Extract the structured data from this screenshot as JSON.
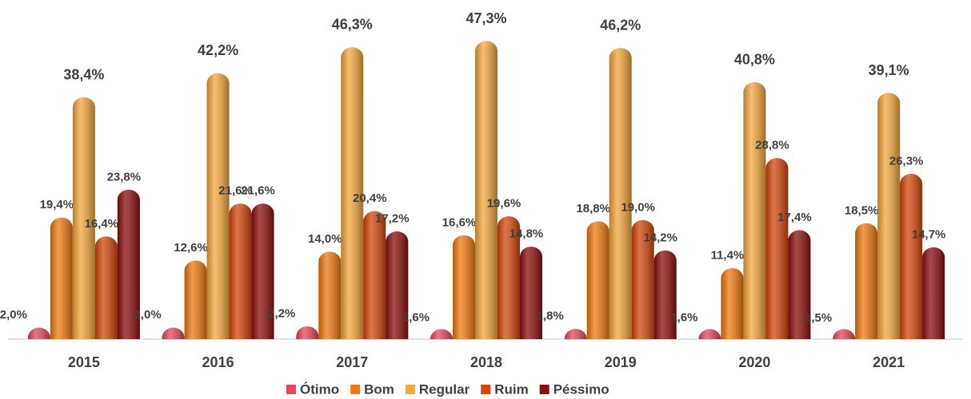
{
  "chart_data": {
    "type": "bar",
    "categories": [
      "2015",
      "2016",
      "2017",
      "2018",
      "2019",
      "2020",
      "2021"
    ],
    "series": [
      {
        "name": "Ótimo",
        "color": "#e8475a",
        "values": [
          2.0,
          2.0,
          2.2,
          1.6,
          1.8,
          1.6,
          1.5
        ],
        "value_labels": [
          "2,0%",
          "2,0%",
          "2,2%",
          "1,6%",
          "1,8%",
          "1,6%",
          "1,5%"
        ]
      },
      {
        "name": "Bom",
        "color": "#f07a10",
        "values": [
          19.4,
          12.6,
          14.0,
          16.6,
          18.8,
          11.4,
          18.5
        ],
        "value_labels": [
          "19,4%",
          "12,6%",
          "14,0%",
          "16,6%",
          "18,8%",
          "11,4%",
          "18,5%"
        ]
      },
      {
        "name": "Regular",
        "color": "#f5a83e",
        "values": [
          38.4,
          42.2,
          46.3,
          47.3,
          46.2,
          40.8,
          39.1
        ],
        "value_labels": [
          "38,4%",
          "42,2%",
          "46,3%",
          "47,3%",
          "46,2%",
          "40,8%",
          "39,1%"
        ]
      },
      {
        "name": "Ruim",
        "color": "#d4460c",
        "values": [
          16.4,
          21.6,
          20.4,
          19.6,
          19.0,
          28.8,
          26.3
        ],
        "value_labels": [
          "16,4%",
          "21,6%",
          "20,4%",
          "19,6%",
          "19,0%",
          "28,8%",
          "26,3%"
        ]
      },
      {
        "name": "Péssimo",
        "color": "#8b0e0e",
        "values": [
          23.8,
          21.6,
          17.2,
          14.8,
          14.2,
          17.4,
          14.7
        ],
        "value_labels": [
          "23,8%",
          "21,6%",
          "17,2%",
          "14,8%",
          "14,2%",
          "17,4%",
          "14,7%"
        ]
      }
    ]
  }
}
